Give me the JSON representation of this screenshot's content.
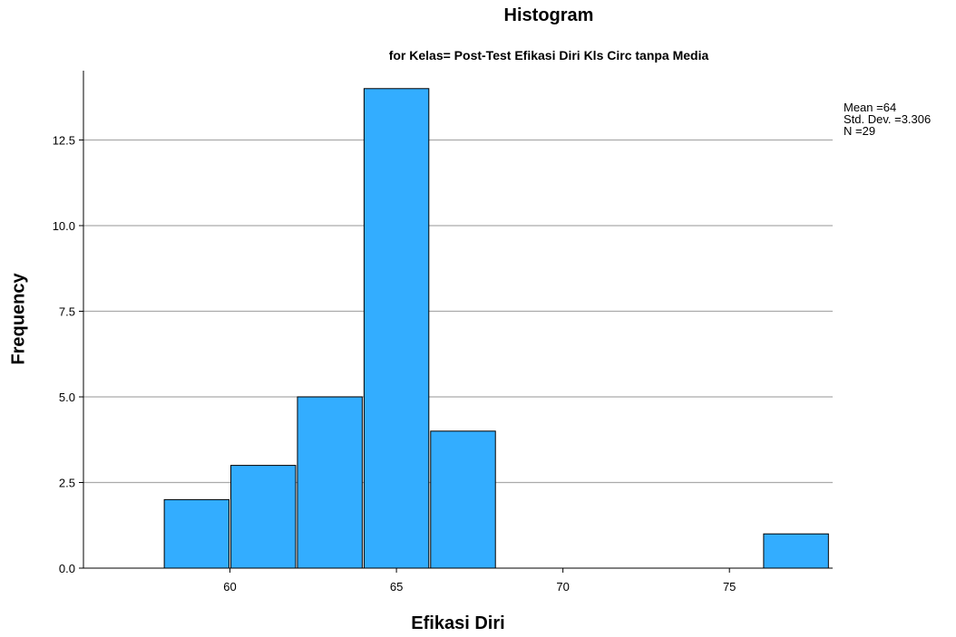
{
  "chart_data": {
    "type": "bar",
    "title": "Histogram",
    "subtitle": "for Kelas= Post-Test Efikasi Diri Kls Circ tanpa Media",
    "xlabel": "Efikasi Diri",
    "ylabel": "Frequency",
    "bins": [
      {
        "start": 58,
        "end": 60,
        "value": 2
      },
      {
        "start": 60,
        "end": 62,
        "value": 3
      },
      {
        "start": 62,
        "end": 64,
        "value": 5
      },
      {
        "start": 64,
        "end": 66,
        "value": 14
      },
      {
        "start": 66,
        "end": 68,
        "value": 4
      },
      {
        "start": 76,
        "end": 78,
        "value": 1
      }
    ],
    "xlim": [
      55.6,
      78.1
    ],
    "ylim": [
      0,
      14.1
    ],
    "x_ticks": [
      60,
      65,
      70,
      75
    ],
    "y_ticks": [
      0,
      2.5,
      5,
      7.5,
      10,
      12.5
    ],
    "y_tick_labels": [
      "0.0",
      "2.5",
      "5.0",
      "7.5",
      "10.0",
      "12.5"
    ],
    "grid": true,
    "bar_color": "#33adff",
    "stats": {
      "mean": "Mean =64",
      "std_dev": "Std. Dev. =3.306",
      "n": "N =29"
    }
  }
}
